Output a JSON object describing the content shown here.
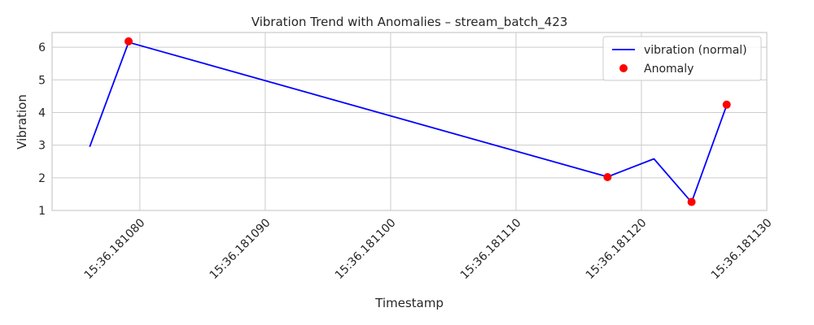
{
  "chart_data": {
    "type": "line",
    "title": "Vibration Trend with Anomalies – stream_batch_423",
    "xlabel": "Timestamp",
    "ylabel": "Vibration",
    "x_tick_prefix": "15:36.",
    "x_ticks": [
      181080,
      181090,
      181100,
      181110,
      181120,
      181130
    ],
    "xlim": [
      181073.0,
      181130.0
    ],
    "ylim": [
      1.0,
      6.45
    ],
    "y_ticks": [
      1,
      2,
      3,
      4,
      5,
      6
    ],
    "grid": true,
    "legend_position": "top-right",
    "series": [
      {
        "name": "vibration (normal)",
        "color": "#0000ff",
        "x": [
          181076.0,
          181079.1,
          181117.3,
          181121.0,
          181124.0,
          181126.8
        ],
        "y": [
          2.95,
          6.15,
          2.03,
          2.58,
          1.25,
          4.22
        ]
      }
    ],
    "anomalies": {
      "name": "Anomaly",
      "color": "#ff0000",
      "x": [
        181079.1,
        181117.3,
        181124.0,
        181126.8
      ],
      "y": [
        6.18,
        2.02,
        1.26,
        4.24
      ]
    }
  }
}
